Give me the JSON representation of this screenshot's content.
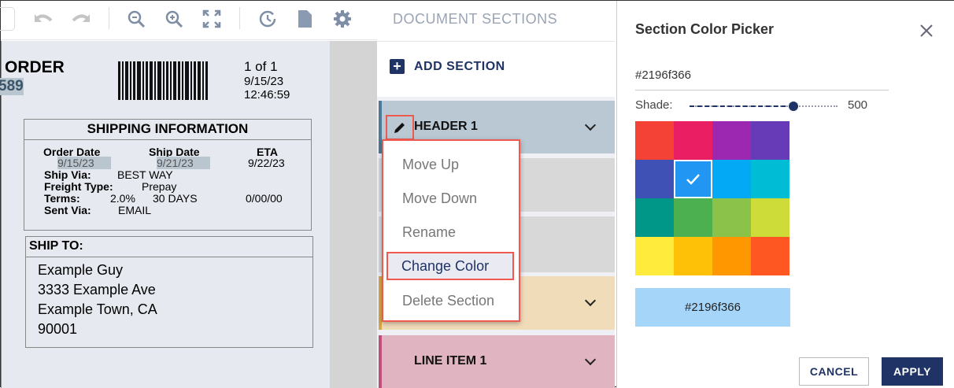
{
  "toolbar": {
    "icons": [
      "undo-icon",
      "redo-icon",
      "zoom-out-icon",
      "zoom-in-icon",
      "fit-screen-icon",
      "history-icon",
      "document-icon",
      "settings-icon"
    ]
  },
  "document": {
    "title": "ORDER",
    "order_number": "589",
    "page": "1 of 1",
    "date": "9/15/23",
    "time": "12:46:59",
    "shipping": {
      "title": "SHIPPING INFORMATION",
      "order_date_label": "Order Date",
      "order_date": "9/15/23",
      "ship_date_label": "Ship Date",
      "ship_date": "9/21/23",
      "eta_label": "ETA",
      "eta": "9/22/23",
      "ship_via_label": "Ship Via:",
      "ship_via": "BEST WAY",
      "freight_label": "Freight Type:",
      "freight": "Prepay",
      "terms_label": "Terms:",
      "terms_pct": "2.0%",
      "terms_days": "30 DAYS",
      "terms_date": "0/00/00",
      "sent_via_label": "Sent Via:",
      "sent_via": "EMAIL"
    },
    "ship_to": {
      "title": "SHIP TO:",
      "lines": [
        "Example Guy",
        "3333 Example Ave",
        "Example Town, CA",
        "90001"
      ]
    }
  },
  "sections": {
    "title": "DOCUMENT SECTIONS",
    "add_label": "ADD SECTION",
    "items": [
      {
        "label": "HEADER 1",
        "bg": "#b9c8d2",
        "border": "#4f7a96"
      },
      {
        "label": "",
        "bg": "#d8d8d8",
        "border": "#d8d8d8"
      },
      {
        "label": "",
        "bg": "#d8d8d8",
        "border": "#d8d8d8"
      },
      {
        "label": "",
        "bg": "#f1dcba",
        "border": "#d9a64a"
      },
      {
        "label": "LINE ITEM 1",
        "bg": "#e0b4c0",
        "border": "#c0507a"
      }
    ],
    "menu": [
      "Move Up",
      "Move Down",
      "Rename",
      "Change Color",
      "Delete Section"
    ],
    "menu_selected": "Change Color"
  },
  "picker": {
    "title": "Section Color Picker",
    "hex_value": "#2196f366",
    "shade_label": "Shade:",
    "shade_value": "500",
    "shade_fraction": 0.7,
    "swatches": [
      "#f44336",
      "#e91e63",
      "#9c27b0",
      "#673ab7",
      "#3f51b5",
      "#2196f3",
      "#03a9f4",
      "#00bcd4",
      "#009688",
      "#4caf50",
      "#8bc34a",
      "#cddc39",
      "#ffeb3b",
      "#ffc107",
      "#ff9800",
      "#ff5722"
    ],
    "selected": "#2196f3",
    "preview_color": "#2196f366",
    "preview_label": "#2196f366",
    "cancel": "CANCEL",
    "apply": "APPLY"
  }
}
